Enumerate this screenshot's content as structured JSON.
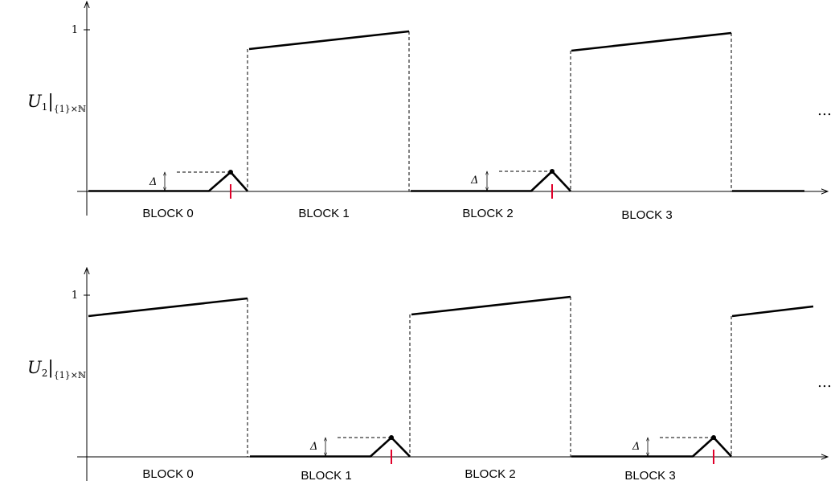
{
  "panels": [
    {
      "id": "u1",
      "ylabel": {
        "base": "U",
        "sub": "1",
        "bar": "|",
        "set": "{1}×ℕ"
      },
      "ytick": "1",
      "blocks": [
        "BLOCK 0",
        "BLOCK 1",
        "BLOCK 2",
        "BLOCK 3"
      ],
      "delta": "Δ",
      "ellipsis": "…",
      "high_blocks": [
        1,
        3
      ],
      "spike_blocks": [
        0,
        2
      ]
    },
    {
      "id": "u2",
      "ylabel": {
        "base": "U",
        "sub": "2",
        "bar": "|",
        "set": "{1}×ℕ"
      },
      "ytick": "1",
      "blocks": [
        "BLOCK 0",
        "BLOCK 1",
        "BLOCK 2",
        "BLOCK 3"
      ],
      "delta": "Δ",
      "ellipsis": "…",
      "high_blocks": [
        0,
        2,
        4
      ],
      "spike_blocks": [
        1,
        3
      ]
    }
  ],
  "colors": {
    "line": "#000000",
    "marker": "#e0002a"
  }
}
